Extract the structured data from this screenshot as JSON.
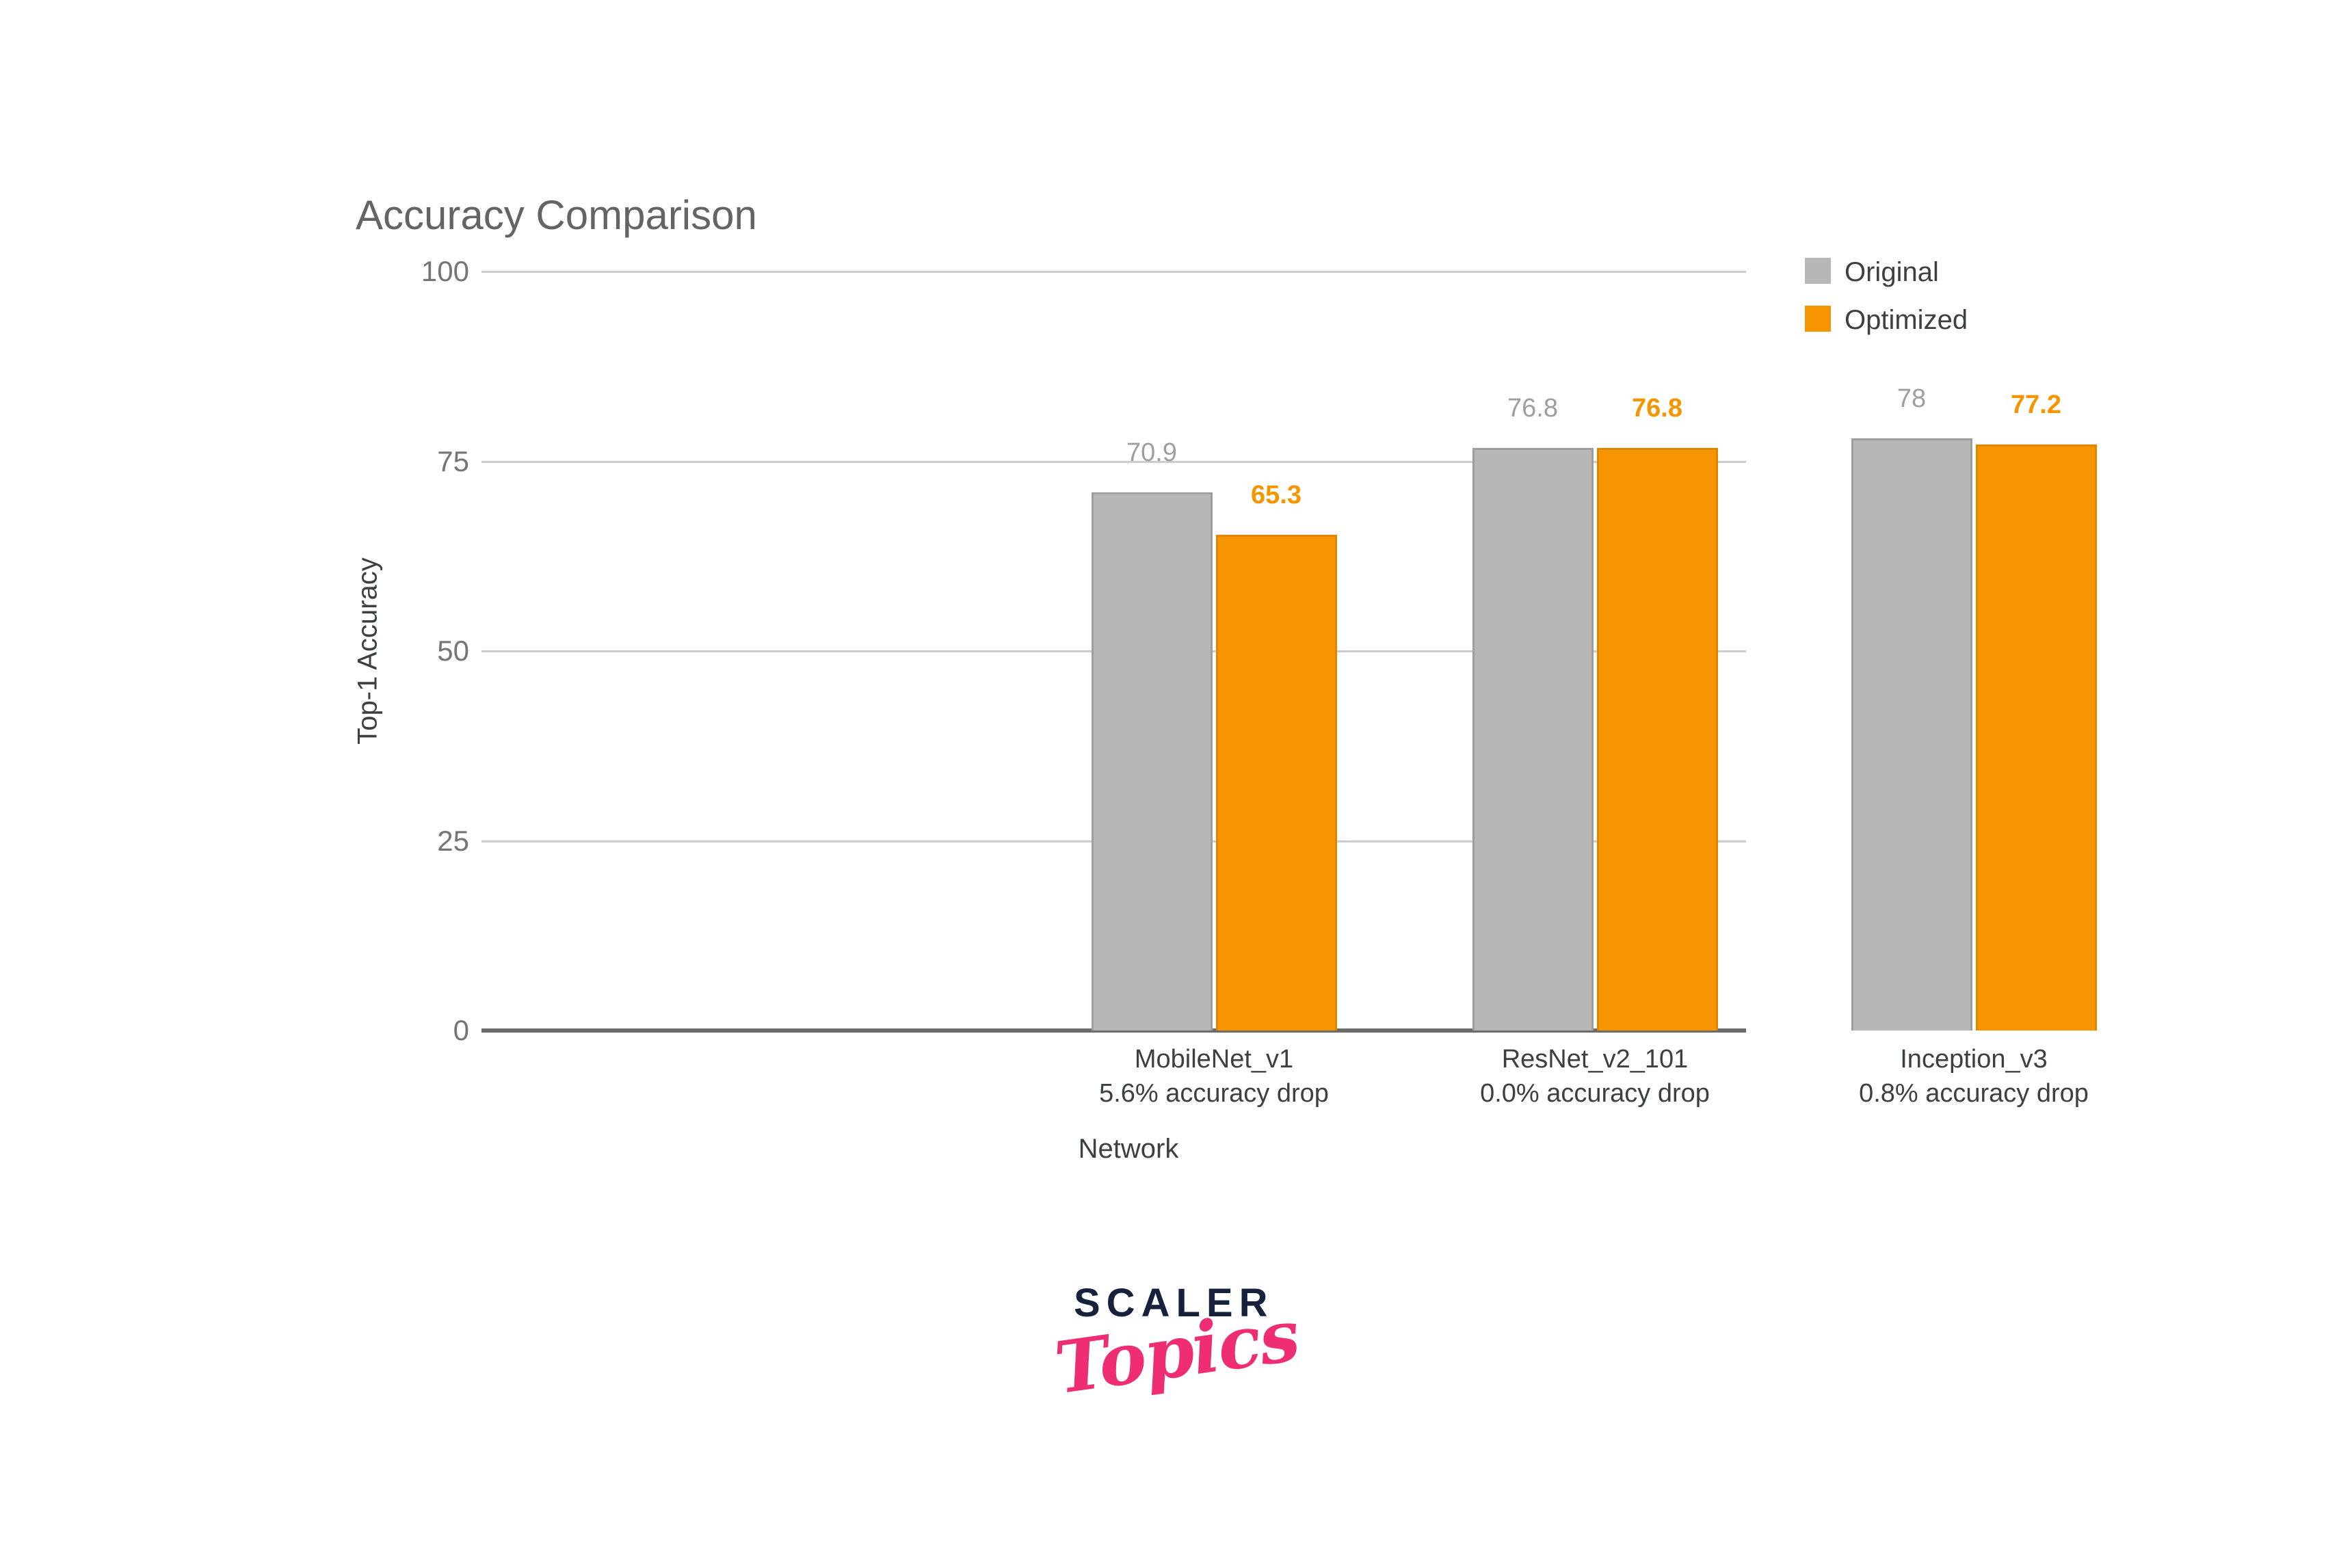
{
  "chart_data": {
    "type": "bar",
    "title": "Accuracy Comparison",
    "xlabel": "Network",
    "ylabel": "Top-1 Accuracy",
    "ylim": [
      0,
      100
    ],
    "yticks": [
      0,
      25,
      50,
      75,
      100
    ],
    "grid": true,
    "legend_position": "top-right",
    "categories": [
      "MobileNet_v1",
      "ResNet_v2_101",
      "Inception_v3"
    ],
    "category_sublabels": [
      "5.6% accuracy drop",
      "0.0% accuracy drop",
      "0.8% accuracy drop"
    ],
    "series": [
      {
        "name": "Original",
        "values": [
          70.9,
          76.8,
          78
        ],
        "value_labels": [
          "70.9",
          "76.8",
          "78"
        ],
        "fill_color": "#b7b7b7",
        "border_color": "#9e9e9e",
        "value_label_color": "#9e9e9e",
        "value_label_bold": false
      },
      {
        "name": "Optimized",
        "values": [
          65.3,
          76.8,
          77.2
        ],
        "value_labels": [
          "65.3",
          "76.8",
          "77.2"
        ],
        "fill_color": "#f79500",
        "border_color": "#e08600",
        "value_label_color": "#f79500",
        "value_label_bold": true
      }
    ]
  },
  "styles": {
    "gridline_color": "#cccccc",
    "baseline_color": "#6b6b6b",
    "tick_label_color": "#757575",
    "axis_title_color": "#3c4043",
    "title_color": "#646464"
  },
  "logo": {
    "primary": "SCALER",
    "secondary": "Topics",
    "primary_color": "#16223b",
    "secondary_color": "#ee2d74"
  }
}
